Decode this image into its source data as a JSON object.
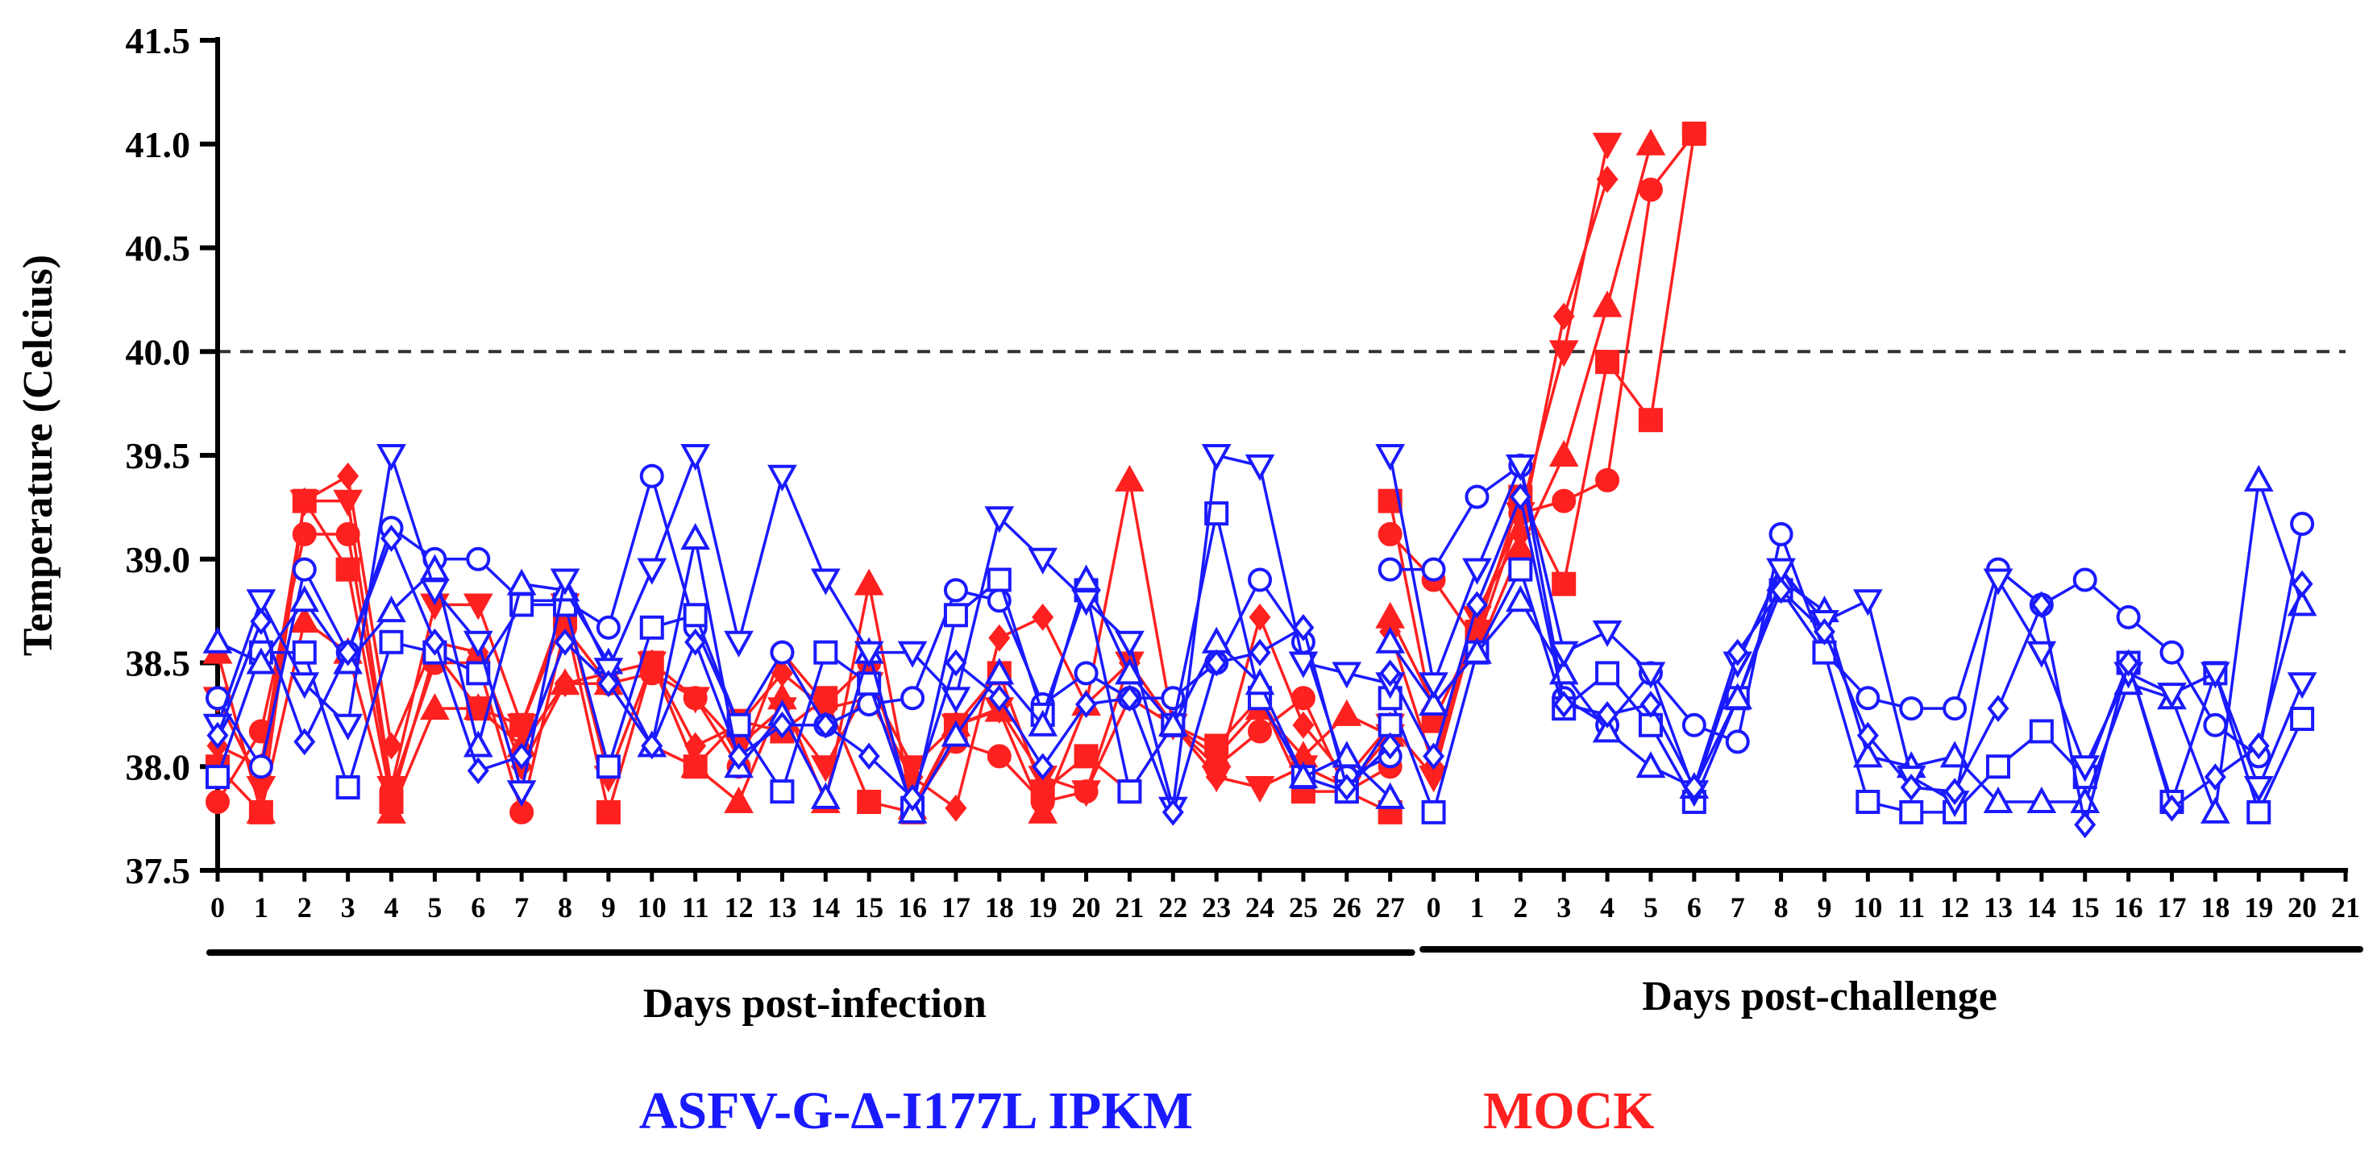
{
  "chart_data": {
    "type": "line",
    "ylabel": "Temperature (Celcius)",
    "ylim": [
      37.5,
      41.5
    ],
    "yticks": [
      "37.5",
      "38.0",
      "38.5",
      "39.0",
      "39.5",
      "40.0",
      "40.5",
      "41.0",
      "41.5"
    ],
    "threshold": 40.0,
    "x_sections": [
      {
        "label": "Days post-infection",
        "days": [
          "0",
          "1",
          "2",
          "3",
          "4",
          "5",
          "6",
          "7",
          "8",
          "9",
          "10",
          "11",
          "12",
          "13",
          "14",
          "15",
          "16",
          "17",
          "18",
          "19",
          "20",
          "21",
          "22",
          "23",
          "24",
          "25",
          "26",
          "27"
        ]
      },
      {
        "label": "Days post-challenge",
        "days": [
          "0",
          "1",
          "2",
          "3",
          "4",
          "5",
          "6",
          "7",
          "8",
          "9",
          "10",
          "11",
          "12",
          "13",
          "14",
          "15",
          "16",
          "17",
          "18",
          "19",
          "20",
          "21"
        ]
      }
    ],
    "legend": [
      {
        "label": "ASFV-G-Δ-I177L IPKM",
        "color": "#1a1aff"
      },
      {
        "label": "MOCK",
        "color": "#ff2020"
      }
    ],
    "groups": {
      "vaccinated": {
        "color": "#1a1aff",
        "animals": [
          {
            "marker": "circle",
            "infection": [
              38.33,
              38.0,
              38.95,
              38.55,
              39.15,
              39.0,
              39.0,
              38.8,
              38.8,
              38.67,
              39.4,
              38.67,
              38.2,
              38.55,
              38.2,
              38.3,
              38.33,
              38.85,
              38.8,
              38.3,
              38.45,
              38.33,
              38.33,
              38.5,
              38.9,
              38.6,
              37.95,
              38.05
            ],
            "challenge": [
              38.95,
              38.95,
              39.3,
              39.45,
              38.33,
              38.2,
              38.45,
              38.2,
              38.12,
              39.12,
              38.55,
              38.33,
              38.28,
              38.28,
              38.95,
              38.78,
              38.9,
              38.72,
              38.55,
              38.2,
              38.05,
              39.17
            ]
          },
          {
            "marker": "square",
            "infection": [
              37.95,
              38.55,
              38.55,
              37.9,
              38.6,
              38.55,
              38.45,
              38.78,
              38.78,
              38.0,
              38.67,
              38.73,
              38.2,
              37.88,
              38.55,
              38.4,
              37.8,
              38.73,
              38.9,
              38.25,
              38.85,
              37.88,
              38.2,
              39.22,
              38.33,
              37.95,
              37.88,
              38.2
            ],
            "challenge": [
              38.33,
              37.78,
              38.55,
              38.95,
              38.28,
              38.45,
              38.2,
              37.83,
              38.33,
              38.85,
              38.55,
              37.83,
              37.78,
              37.78,
              38.0,
              38.17,
              37.95,
              38.5,
              37.83,
              38.45,
              37.78,
              38.23
            ]
          },
          {
            "marker": "triangle",
            "infection": [
              38.6,
              38.5,
              38.8,
              38.5,
              38.75,
              38.95,
              38.1,
              38.88,
              38.85,
              38.5,
              38.1,
              39.1,
              38.0,
              38.25,
              37.85,
              38.55,
              37.78,
              38.15,
              38.45,
              38.2,
              38.9,
              38.45,
              38.2,
              38.6,
              38.4,
              37.95,
              38.05,
              37.85
            ],
            "challenge": [
              38.6,
              38.3,
              38.55,
              38.8,
              38.45,
              38.17,
              38.0,
              37.9,
              38.33,
              38.9,
              38.75,
              38.05,
              38.0,
              38.05,
              37.83,
              37.83,
              37.83,
              38.4,
              38.33,
              37.78,
              39.38,
              38.78
            ]
          },
          {
            "marker": "down-triangle",
            "infection": [
              38.2,
              38.8,
              38.4,
              38.2,
              39.5,
              38.85,
              38.6,
              37.88,
              38.9,
              38.47,
              38.95,
              39.5,
              38.6,
              39.4,
              38.9,
              38.55,
              38.55,
              38.33,
              39.2,
              39.0,
              38.8,
              38.6,
              37.8,
              39.5,
              39.45,
              38.5,
              38.45,
              38.4
            ],
            "challenge": [
              39.5,
              38.4,
              38.95,
              39.45,
              38.55,
              38.65,
              38.45,
              37.88,
              38.5,
              38.95,
              38.7,
              38.8,
              37.95,
              37.83,
              38.9,
              38.55,
              38.0,
              38.45,
              38.35,
              38.45,
              37.9,
              38.4
            ]
          },
          {
            "marker": "diamond",
            "infection": [
              38.15,
              38.7,
              38.12,
              38.55,
              39.1,
              38.6,
              37.98,
              38.05,
              38.6,
              38.4,
              38.1,
              38.6,
              38.05,
              38.2,
              38.2,
              38.05,
              37.85,
              38.5,
              38.33,
              38.0,
              38.3,
              38.33,
              37.78,
              38.5,
              38.55,
              38.67,
              37.9,
              38.1
            ],
            "challenge": [
              38.45,
              38.05,
              38.78,
              39.3,
              38.3,
              38.25,
              38.3,
              37.9,
              38.55,
              38.85,
              38.65,
              38.15,
              37.9,
              37.88,
              38.28,
              38.78,
              37.72,
              38.5,
              37.8,
              37.95,
              38.1,
              38.88
            ]
          }
        ]
      },
      "mock": {
        "color": "#ff2020",
        "animals": [
          {
            "marker": "circle",
            "infection": [
              37.83,
              38.17,
              39.12,
              39.12,
              37.88,
              38.5,
              38.5,
              37.78,
              38.67,
              38.4,
              38.45,
              38.33,
              38.0,
              38.55,
              38.3,
              38.5,
              37.8,
              38.12,
              38.05,
              37.83,
              37.88,
              38.33,
              38.2,
              38.0,
              38.17,
              38.33,
              37.88,
              38.0
            ],
            "challenge": [
              39.12,
              38.9,
              38.6,
              39.22,
              39.28,
              39.38,
              40.78,
              41.05
            ]
          },
          {
            "marker": "square",
            "infection": [
              38.0,
              37.78,
              39.28,
              38.95,
              37.83,
              38.55,
              38.28,
              38.2,
              38.72,
              37.78,
              38.5,
              38.0,
              38.22,
              38.17,
              38.33,
              37.83,
              37.78,
              38.2,
              38.45,
              37.88,
              38.05,
              37.88,
              38.2,
              38.1,
              38.33,
              37.88,
              37.88,
              37.78
            ],
            "challenge": [
              39.28,
              38.22,
              38.65,
              39.3,
              38.88,
              39.95,
              39.67,
              41.05
            ]
          },
          {
            "marker": "triangle",
            "infection": [
              38.55,
              37.78,
              38.7,
              38.55,
              37.78,
              38.28,
              38.28,
              38.1,
              38.4,
              38.4,
              38.1,
              38.0,
              37.83,
              38.33,
              37.83,
              38.88,
              37.8,
              38.2,
              38.27,
              37.78,
              38.3,
              39.38,
              38.2,
              38.05,
              38.28,
              38.05,
              38.25,
              38.15
            ],
            "challenge": [
              38.72,
              38.3,
              38.55,
              39.05,
              39.5,
              40.22,
              41.0
            ]
          },
          {
            "marker": "down-triangle",
            "infection": [
              38.33,
              37.9,
              39.28,
              39.28,
              37.9,
              38.78,
              38.78,
              38.2,
              38.78,
              37.95,
              38.5,
              38.33,
              38.1,
              38.28,
              38.0,
              38.4,
              38.0,
              38.2,
              38.28,
              37.95,
              37.88,
              38.5,
              38.2,
              37.95,
              37.9,
              38.0,
              37.9,
              38.15
            ],
            "challenge": [
              38.2,
              37.95,
              38.72,
              39.22,
              40.0,
              41.0
            ]
          },
          {
            "marker": "diamond",
            "infection": [
              38.1,
              38.0,
              39.28,
              39.4,
              38.1,
              38.6,
              38.55,
              38.0,
              38.4,
              38.45,
              38.5,
              38.1,
              38.2,
              38.45,
              38.28,
              38.33,
              37.95,
              37.8,
              38.62,
              38.72,
              38.3,
              38.5,
              38.2,
              37.95,
              38.72,
              38.2,
              37.95,
              38.2
            ],
            "challenge": [
              38.65,
              38.0,
              38.75,
              39.12,
              40.17,
              40.83
            ]
          }
        ]
      }
    }
  }
}
